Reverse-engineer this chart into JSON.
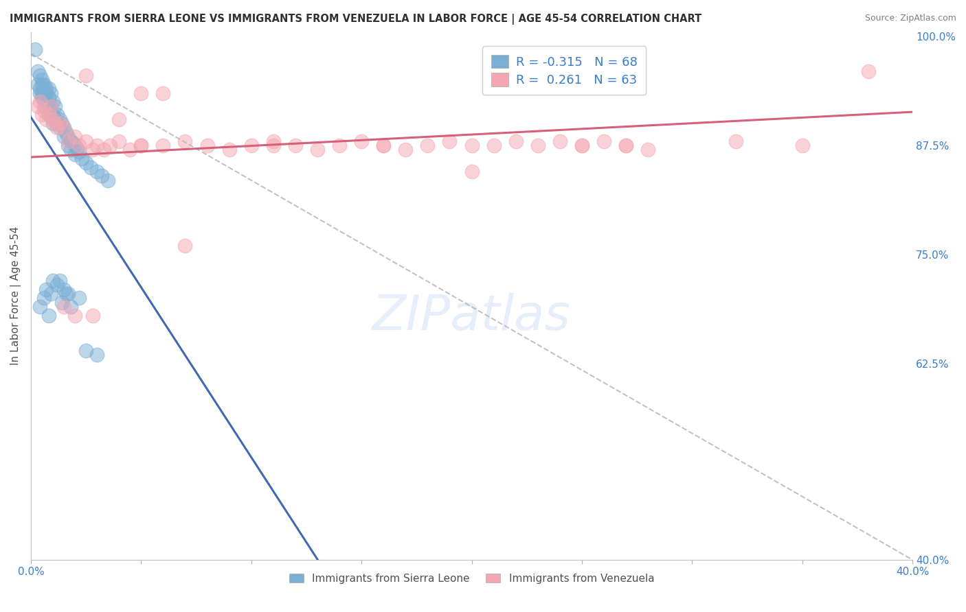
{
  "title": "IMMIGRANTS FROM SIERRA LEONE VS IMMIGRANTS FROM VENEZUELA IN LABOR FORCE | AGE 45-54 CORRELATION CHART",
  "source": "Source: ZipAtlas.com",
  "ylabel": "In Labor Force | Age 45-54",
  "xmin": 0.0,
  "xmax": 0.4,
  "ymin": 0.4,
  "ymax": 1.005,
  "right_yticks": [
    1.0,
    0.875,
    0.75,
    0.625,
    0.4
  ],
  "right_yticklabels": [
    "100.0%",
    "87.5%",
    "75.0%",
    "62.5%",
    "40.0%"
  ],
  "legend_R_sierra": "-0.315",
  "legend_N_sierra": "68",
  "legend_R_venezuela": "0.261",
  "legend_N_venezuela": "63",
  "sierra_color": "#7bafd4",
  "venezuela_color": "#f4a7b2",
  "sierra_line_color": "#4169b0",
  "venezuela_line_color": "#d4607a",
  "diagonal_color": "#b8b8b8",
  "watermark": "ZIPatlas",
  "sierra_x": [
    0.002,
    0.003,
    0.003,
    0.004,
    0.004,
    0.004,
    0.005,
    0.005,
    0.005,
    0.005,
    0.006,
    0.006,
    0.006,
    0.006,
    0.007,
    0.007,
    0.007,
    0.008,
    0.008,
    0.008,
    0.008,
    0.009,
    0.009,
    0.009,
    0.01,
    0.01,
    0.01,
    0.011,
    0.011,
    0.012,
    0.012,
    0.013,
    0.013,
    0.014,
    0.015,
    0.015,
    0.016,
    0.017,
    0.017,
    0.018,
    0.018,
    0.019,
    0.02,
    0.02,
    0.021,
    0.022,
    0.023,
    0.025,
    0.027,
    0.03,
    0.032,
    0.035,
    0.007,
    0.017,
    0.022,
    0.008,
    0.014,
    0.018,
    0.025,
    0.03,
    0.004,
    0.006,
    0.009,
    0.013,
    0.01,
    0.012,
    0.015,
    0.016
  ],
  "sierra_y": [
    0.985,
    0.96,
    0.945,
    0.955,
    0.94,
    0.935,
    0.95,
    0.945,
    0.935,
    0.93,
    0.945,
    0.935,
    0.928,
    0.92,
    0.94,
    0.935,
    0.925,
    0.94,
    0.93,
    0.92,
    0.91,
    0.935,
    0.92,
    0.91,
    0.925,
    0.91,
    0.9,
    0.92,
    0.905,
    0.91,
    0.9,
    0.905,
    0.895,
    0.9,
    0.895,
    0.885,
    0.89,
    0.885,
    0.875,
    0.88,
    0.87,
    0.878,
    0.875,
    0.865,
    0.872,
    0.868,
    0.86,
    0.855,
    0.85,
    0.845,
    0.84,
    0.835,
    0.71,
    0.705,
    0.7,
    0.68,
    0.695,
    0.69,
    0.64,
    0.635,
    0.69,
    0.7,
    0.705,
    0.72,
    0.72,
    0.715,
    0.71,
    0.705
  ],
  "venezuela_x": [
    0.003,
    0.004,
    0.005,
    0.006,
    0.007,
    0.008,
    0.009,
    0.01,
    0.011,
    0.012,
    0.013,
    0.015,
    0.017,
    0.02,
    0.022,
    0.025,
    0.028,
    0.03,
    0.033,
    0.036,
    0.04,
    0.045,
    0.05,
    0.06,
    0.07,
    0.08,
    0.09,
    0.1,
    0.11,
    0.12,
    0.13,
    0.14,
    0.15,
    0.16,
    0.17,
    0.18,
    0.19,
    0.2,
    0.21,
    0.22,
    0.23,
    0.24,
    0.25,
    0.26,
    0.27,
    0.28,
    0.32,
    0.35,
    0.025,
    0.05,
    0.07,
    0.015,
    0.02,
    0.11,
    0.16,
    0.04,
    0.06,
    0.2,
    0.25,
    0.38,
    0.05,
    0.27,
    0.028
  ],
  "venezuela_y": [
    0.92,
    0.925,
    0.91,
    0.915,
    0.905,
    0.91,
    0.92,
    0.905,
    0.9,
    0.895,
    0.9,
    0.895,
    0.88,
    0.885,
    0.875,
    0.88,
    0.87,
    0.875,
    0.87,
    0.875,
    0.88,
    0.87,
    0.875,
    0.875,
    0.88,
    0.875,
    0.87,
    0.875,
    0.88,
    0.875,
    0.87,
    0.875,
    0.88,
    0.875,
    0.87,
    0.875,
    0.88,
    0.845,
    0.875,
    0.88,
    0.875,
    0.88,
    0.875,
    0.88,
    0.875,
    0.87,
    0.88,
    0.875,
    0.955,
    0.935,
    0.76,
    0.69,
    0.68,
    0.875,
    0.875,
    0.905,
    0.935,
    0.875,
    0.875,
    0.96,
    0.875,
    0.875,
    0.68
  ]
}
